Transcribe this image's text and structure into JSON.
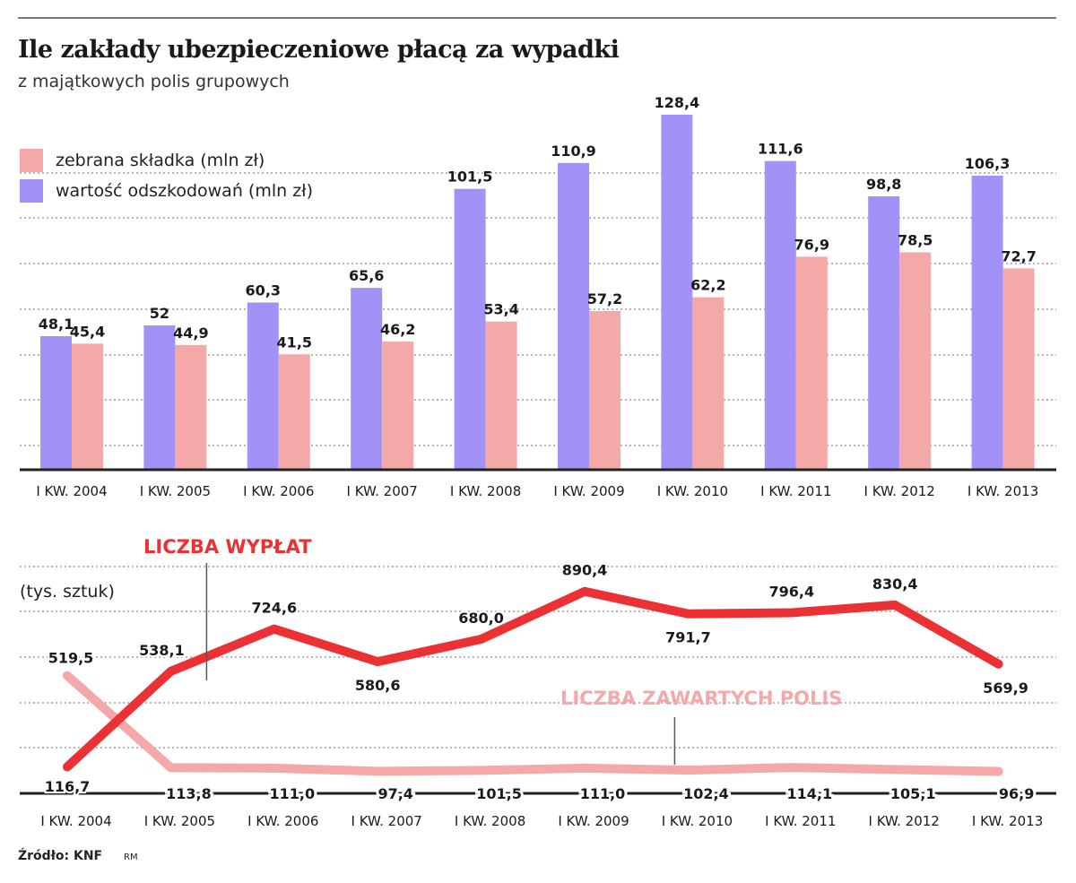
{
  "header": {
    "title": "Ile zakłady ubezpieczeniowe płacą za wypadki",
    "subtitle": "z majątkowych polis grupowych"
  },
  "footer": {
    "source": "Źródło: KNF",
    "credit": "RM"
  },
  "colors": {
    "premium": "#f4a9a8",
    "claims": "#a291f7",
    "payouts": "#ec3134",
    "policies": "#f4a9a8",
    "grid": "#8c8c8c",
    "axis": "#222222"
  },
  "chart_data": [
    {
      "type": "bar",
      "categories": [
        "I KW. 2004",
        "I KW. 2005",
        "I KW. 2006",
        "I KW. 2007",
        "I KW. 2008",
        "I KW. 2009",
        "I KW. 2010",
        "I KW. 2011",
        "I KW. 2012",
        "I KW. 2013"
      ],
      "series": [
        {
          "name": "wartość odszkodowań (mln zł)",
          "values": [
            48.1,
            52,
            60.3,
            65.6,
            101.5,
            110.9,
            128.4,
            111.6,
            98.8,
            106.3
          ],
          "labels": [
            "48,1",
            "52",
            "60,3",
            "65,6",
            "101,5",
            "110,9",
            "128,4",
            "111,6",
            "98,8",
            "106,3"
          ]
        },
        {
          "name": "zebrana składka (mln zł)",
          "values": [
            45.4,
            44.9,
            41.5,
            46.2,
            53.4,
            57.2,
            62.2,
            76.9,
            78.5,
            72.7
          ],
          "labels": [
            "45,4",
            "44,9",
            "41,5",
            "46,2",
            "53,4",
            "57,2",
            "62,2",
            "76,9",
            "78,5",
            "72,7"
          ]
        }
      ],
      "legend": [
        "zebrana składka (mln zł)",
        "wartość odszkodowań (mln zł)"
      ],
      "ylim": [
        0,
        130
      ],
      "grid": true,
      "legend_position": "top-left"
    },
    {
      "type": "line",
      "categories": [
        "I KW. 2004",
        "I KW. 2005",
        "I KW. 2006",
        "I KW. 2007",
        "I KW. 2008",
        "I KW. 2009",
        "I KW. 2010",
        "I KW. 2011",
        "I KW. 2012",
        "I KW. 2013"
      ],
      "ylabel": "(tys. sztuk)",
      "series": [
        {
          "name": "LICZBA WYPŁAT",
          "values": [
            116.7,
            538.1,
            724.6,
            580.6,
            680.0,
            890.4,
            791.7,
            796.4,
            830.4,
            569.9
          ],
          "labels": [
            "116,7",
            "538,1",
            "724,6",
            "580,6",
            "680,0",
            "890,4",
            "791,7",
            "796,4",
            "830,4",
            "569,9"
          ]
        },
        {
          "name": "LICZBA ZAWARTYCH POLIS",
          "values": [
            519.5,
            113.8,
            111.0,
            97.4,
            101.5,
            111.0,
            102.4,
            114.1,
            105.1,
            96.9
          ],
          "labels": [
            "519,5",
            "113,8",
            "111,0",
            "97,4",
            "101,5",
            "111,0",
            "102,4",
            "114,1",
            "105,1",
            "96,9"
          ]
        }
      ],
      "grid": true
    }
  ]
}
